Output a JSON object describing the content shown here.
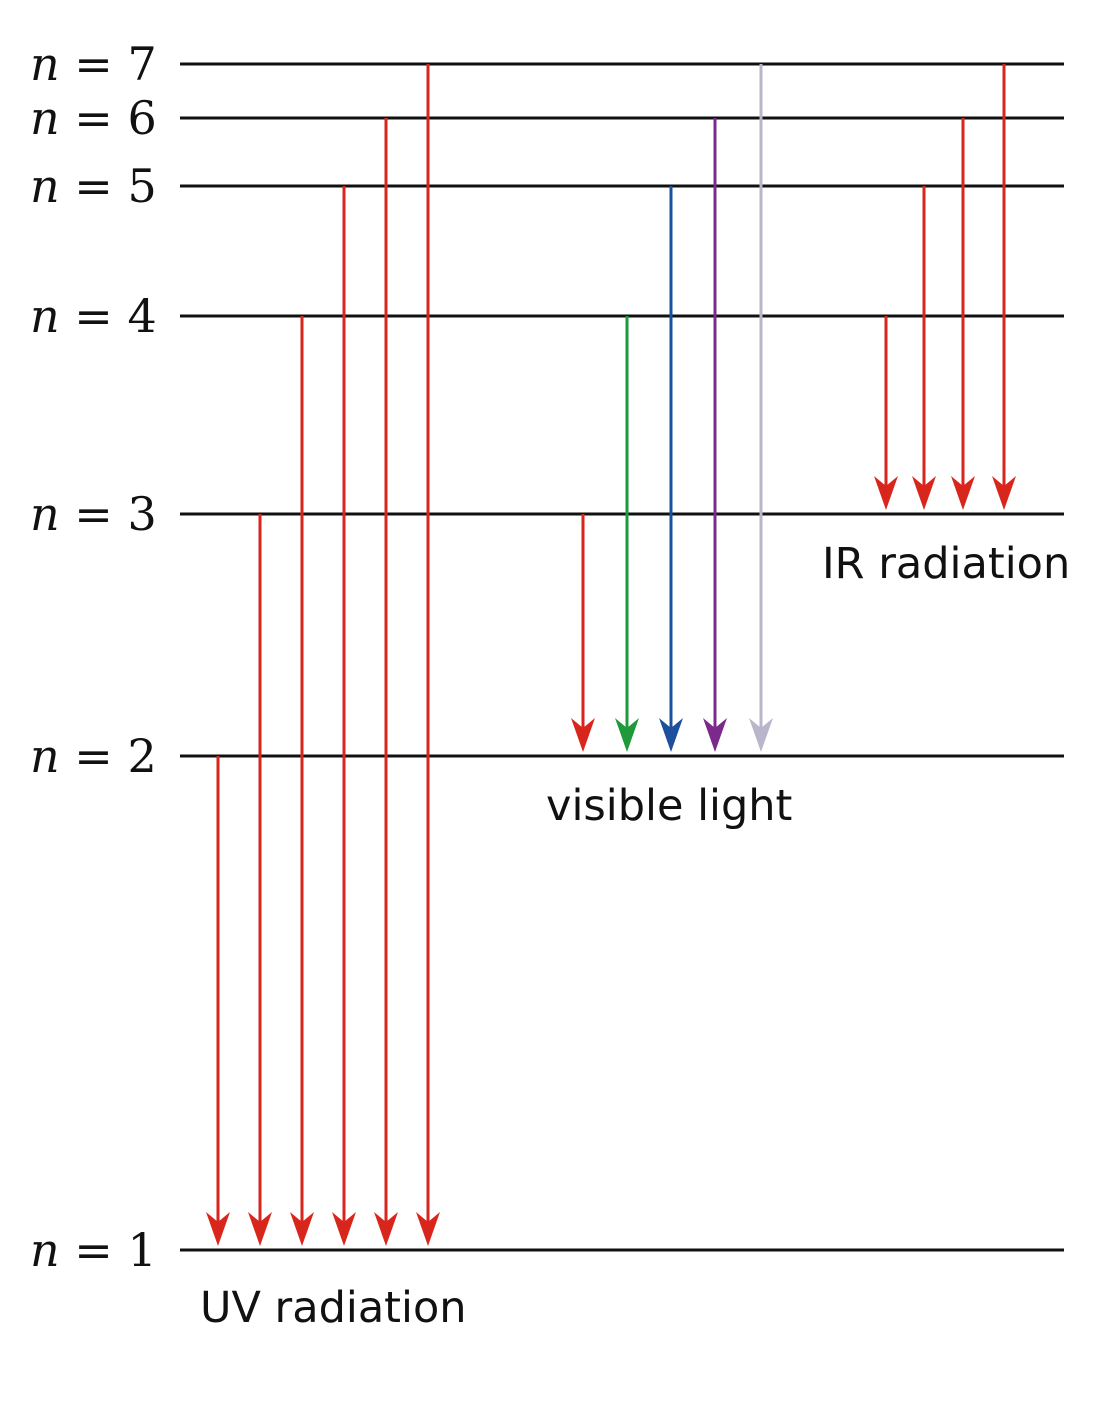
{
  "levels": [
    {
      "n": 1,
      "var": "n",
      "eq": " = ",
      "num": "1"
    },
    {
      "n": 2,
      "var": "n",
      "eq": " = ",
      "num": "2"
    },
    {
      "n": 3,
      "var": "n",
      "eq": " = ",
      "num": "3"
    },
    {
      "n": 4,
      "var": "n",
      "eq": " = ",
      "num": "4"
    },
    {
      "n": 5,
      "var": "n",
      "eq": " = ",
      "num": "5"
    },
    {
      "n": 6,
      "var": "n",
      "eq": " = ",
      "num": "6"
    },
    {
      "n": 7,
      "var": "n",
      "eq": " = ",
      "num": "7"
    }
  ],
  "series": [
    {
      "label": "UV radiation",
      "final_level": 1,
      "transitions": [
        {
          "from": 2,
          "to": 1,
          "color": "#d9261c"
        },
        {
          "from": 3,
          "to": 1,
          "color": "#d9261c"
        },
        {
          "from": 4,
          "to": 1,
          "color": "#d9261c"
        },
        {
          "from": 5,
          "to": 1,
          "color": "#d9261c"
        },
        {
          "from": 6,
          "to": 1,
          "color": "#d9261c"
        },
        {
          "from": 7,
          "to": 1,
          "color": "#d9261c"
        }
      ]
    },
    {
      "label": "visible light",
      "final_level": 2,
      "transitions": [
        {
          "from": 3,
          "to": 2,
          "color": "#d9261c"
        },
        {
          "from": 4,
          "to": 2,
          "color": "#1f9a3a"
        },
        {
          "from": 5,
          "to": 2,
          "color": "#1c4f9c"
        },
        {
          "from": 6,
          "to": 2,
          "color": "#7b2a8c"
        },
        {
          "from": 7,
          "to": 2,
          "color": "#b9b6cc"
        }
      ]
    },
    {
      "label": "IR radiation",
      "final_level": 3,
      "transitions": [
        {
          "from": 4,
          "to": 3,
          "color": "#d9261c"
        },
        {
          "from": 5,
          "to": 3,
          "color": "#d9261c"
        },
        {
          "from": 6,
          "to": 3,
          "color": "#d9261c"
        },
        {
          "from": 7,
          "to": 3,
          "color": "#d9261c"
        }
      ]
    }
  ]
}
